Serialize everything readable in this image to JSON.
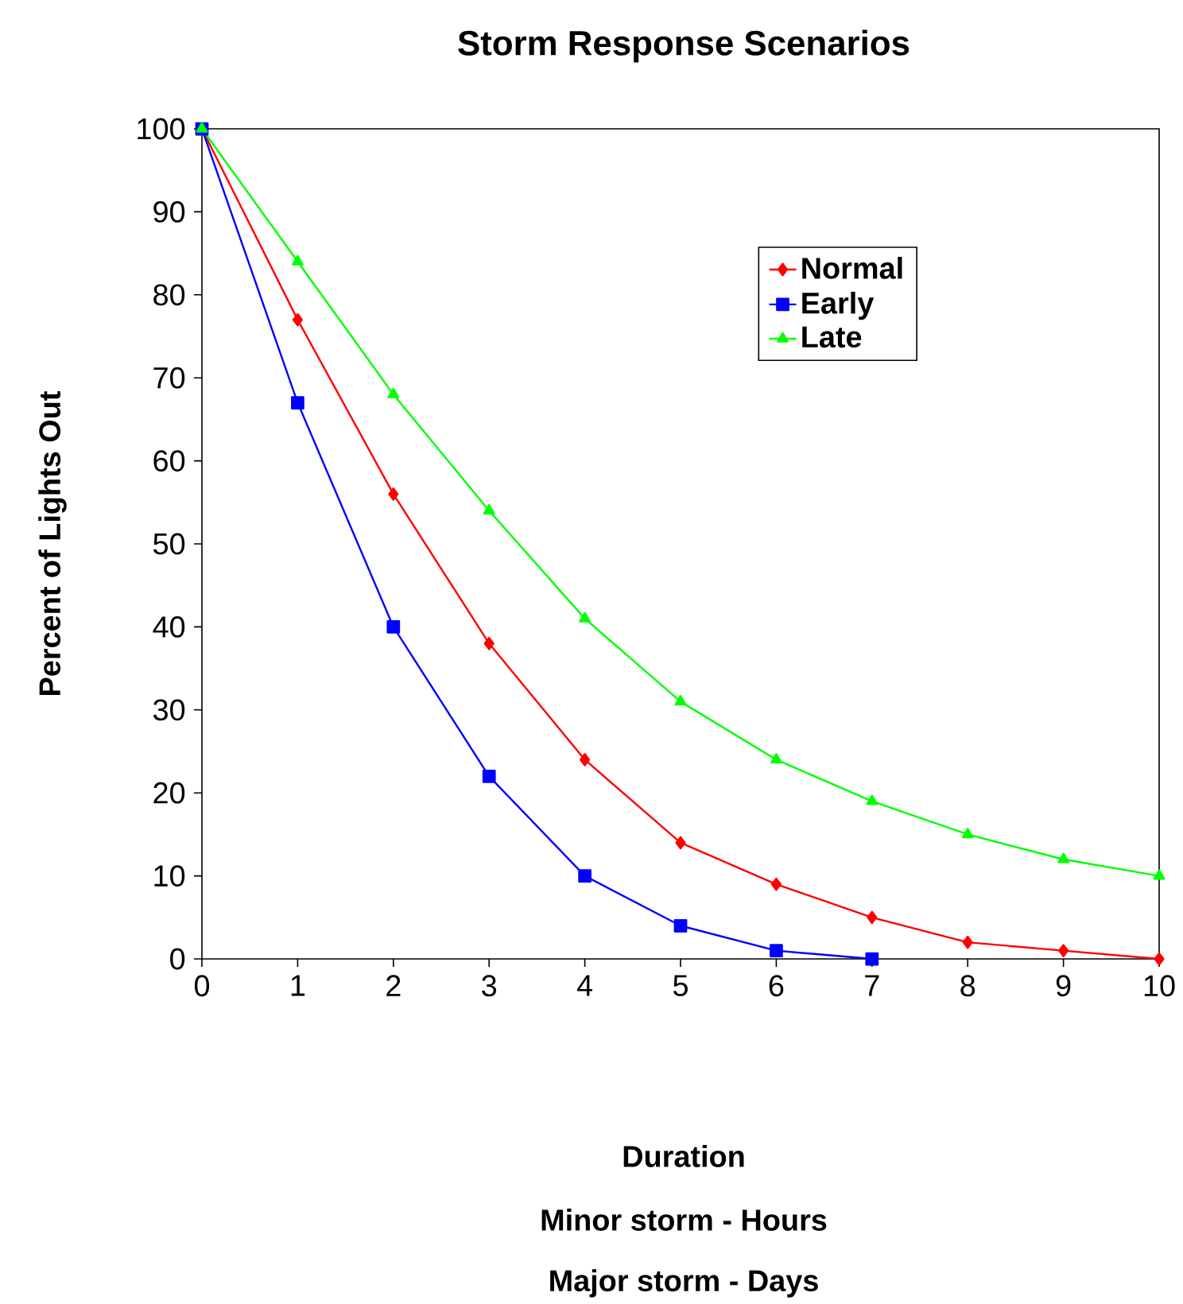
{
  "chart_data": {
    "type": "line",
    "title": "Storm Response Scenarios",
    "ylabel": "Percent of Lights Out",
    "annotations": [
      "Duration",
      "Minor storm - Hours",
      "Major storm - Days"
    ],
    "series": [
      {
        "name": "Normal",
        "color": "#ff0000",
        "marker": "diamond",
        "x": [
          0,
          1,
          2,
          3,
          4,
          5,
          6,
          7,
          8,
          9,
          10
        ],
        "values": [
          100,
          77,
          56,
          38,
          24,
          14,
          9,
          5,
          2,
          1,
          0
        ]
      },
      {
        "name": "Early",
        "color": "#0000ff",
        "marker": "square",
        "x": [
          0,
          1,
          2,
          3,
          4,
          5,
          6,
          7
        ],
        "values": [
          100,
          67,
          40,
          22,
          10,
          4,
          1,
          0
        ]
      },
      {
        "name": "Late",
        "color": "#00ff00",
        "marker": "triangle",
        "x": [
          0,
          1,
          2,
          3,
          4,
          5,
          6,
          7,
          8,
          9,
          10
        ],
        "values": [
          100,
          84,
          68,
          54,
          41,
          31,
          24,
          19,
          15,
          12,
          10
        ]
      }
    ],
    "xlim": [
      0,
      10
    ],
    "ylim": [
      0,
      100
    ],
    "xticks": [
      0,
      1,
      2,
      3,
      4,
      5,
      6,
      7,
      8,
      9,
      10
    ],
    "yticks": [
      0,
      10,
      20,
      30,
      40,
      50,
      60,
      70,
      80,
      90,
      100
    ],
    "grid": false,
    "legend": "top right",
    "line_style": "solid"
  }
}
